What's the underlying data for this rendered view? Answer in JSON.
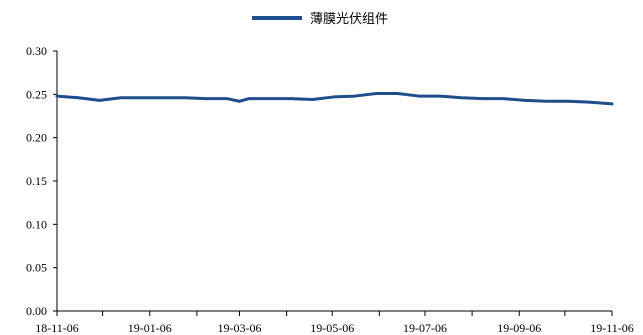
{
  "chart_data": {
    "type": "line",
    "title": "",
    "xlabel": "",
    "ylabel": "",
    "ylim": [
      0,
      0.3
    ],
    "yticks": [
      "0.00",
      "0.05",
      "0.10",
      "0.15",
      "0.20",
      "0.25",
      "0.30"
    ],
    "xticks": [
      "18-11-06",
      "19-01-06",
      "19-03-06",
      "19-05-06",
      "19-07-06",
      "19-09-06",
      "19-11-06"
    ],
    "xlim": [
      "2018-11-06",
      "2019-11-06"
    ],
    "grid": false,
    "legend_position": "top-center",
    "series": [
      {
        "name": "薄膜光伏组件",
        "color": "#1f4e8c",
        "points": [
          [
            "2018-11-06",
            0.248
          ],
          [
            "2018-11-20",
            0.246
          ],
          [
            "2018-12-04",
            0.243
          ],
          [
            "2018-12-18",
            0.246
          ],
          [
            "2019-01-01",
            0.246
          ],
          [
            "2019-01-15",
            0.246
          ],
          [
            "2019-01-29",
            0.246
          ],
          [
            "2019-02-12",
            0.245
          ],
          [
            "2019-02-26",
            0.245
          ],
          [
            "2019-03-06",
            0.242
          ],
          [
            "2019-03-12",
            0.245
          ],
          [
            "2019-03-26",
            0.245
          ],
          [
            "2019-04-09",
            0.245
          ],
          [
            "2019-04-23",
            0.244
          ],
          [
            "2019-05-07",
            0.247
          ],
          [
            "2019-05-21",
            0.248
          ],
          [
            "2019-06-04",
            0.251
          ],
          [
            "2019-06-18",
            0.251
          ],
          [
            "2019-07-02",
            0.248
          ],
          [
            "2019-07-16",
            0.248
          ],
          [
            "2019-07-30",
            0.246
          ],
          [
            "2019-08-13",
            0.245
          ],
          [
            "2019-08-27",
            0.245
          ],
          [
            "2019-09-10",
            0.243
          ],
          [
            "2019-09-24",
            0.242
          ],
          [
            "2019-10-08",
            0.242
          ],
          [
            "2019-10-22",
            0.241
          ],
          [
            "2019-11-06",
            0.239
          ]
        ]
      }
    ]
  }
}
